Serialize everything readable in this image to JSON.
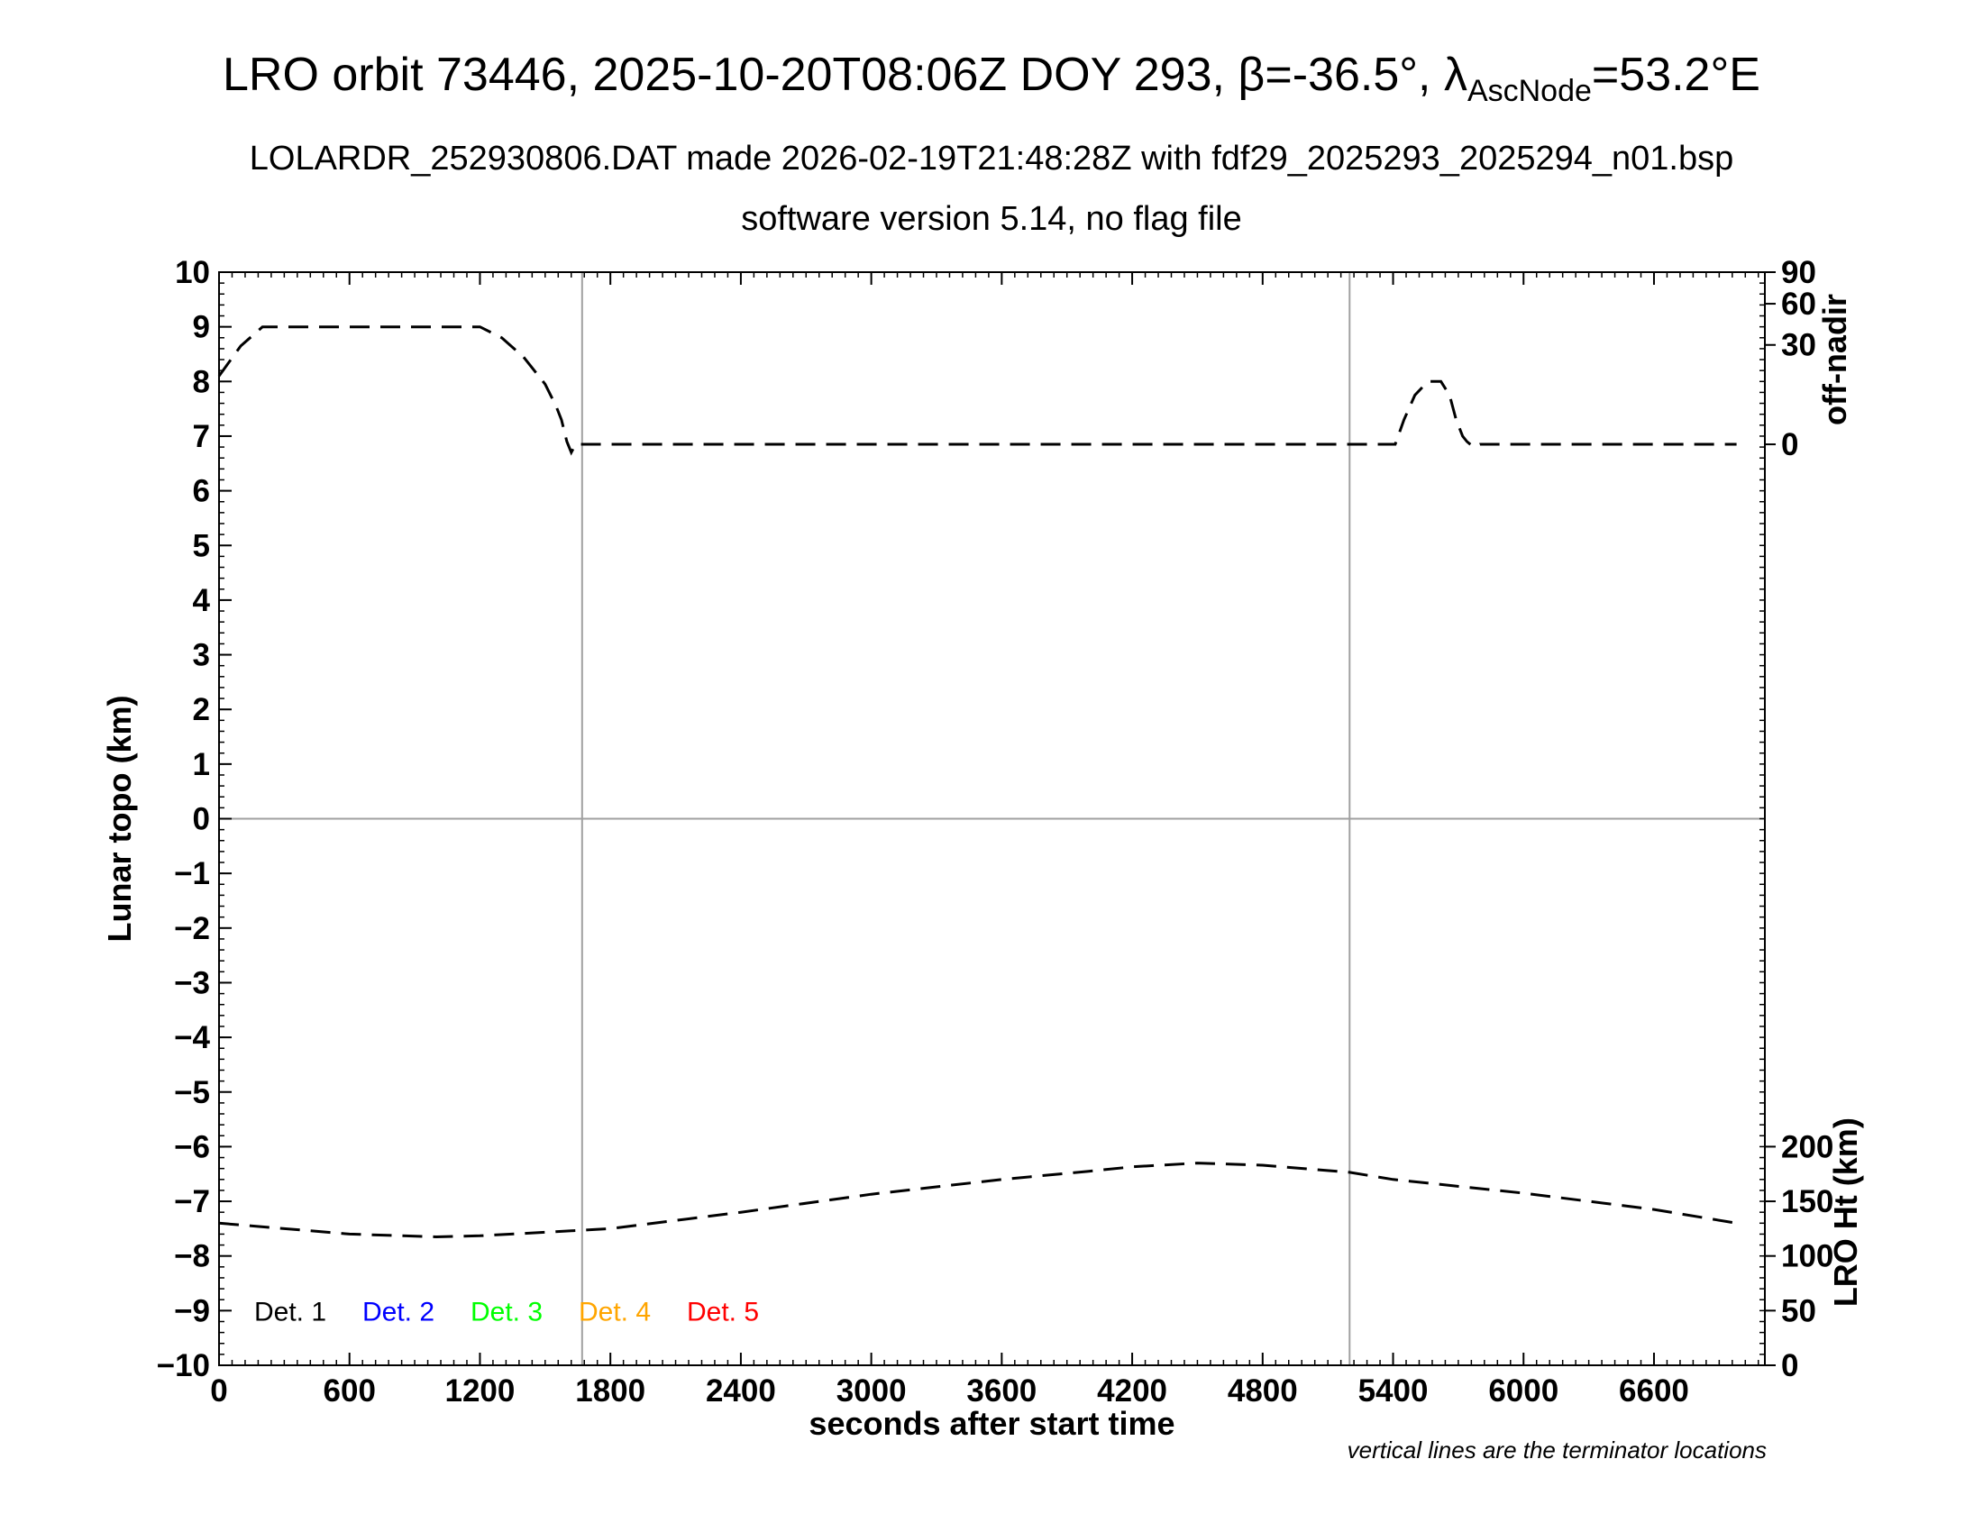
{
  "title_parts": {
    "main": "LRO orbit 73446, 2025-10-20T08:06Z DOY 293, ",
    "beta_symbol": "β",
    "beta_value": "=-36.5°, ",
    "lambda_symbol": "λ",
    "lambda_subscript": "AscNode",
    "lambda_value": "=53.2°E"
  },
  "subtitle": "LOLARDR_252930806.DAT made 2026-02-19T21:48:28Z with fdf29_2025293_2025294_n01.bsp",
  "subtitle2": "software version 5.14, no flag file",
  "footnote": "vertical lines are the terminator locations",
  "chart_data": {
    "type": "line",
    "xlabel": "seconds after start time",
    "ylabel": "Lunar topo (km)",
    "right_top_label": "off-nadir",
    "right_bottom_label": "LRO Ht (km)",
    "xlim": [
      0,
      7110
    ],
    "ylim": [
      -10,
      10
    ],
    "x_ticks": [
      0,
      600,
      1200,
      1800,
      2400,
      3000,
      3600,
      4200,
      4800,
      5400,
      6000,
      6600
    ],
    "y_ticks": [
      10,
      9,
      8,
      7,
      6,
      5,
      4,
      3,
      2,
      1,
      0,
      -1,
      -2,
      -3,
      -4,
      -5,
      -6,
      -7,
      -8,
      -9,
      -10
    ],
    "y_tick_labels": [
      "10",
      "9",
      "8",
      "7",
      "6",
      "5",
      "4",
      "3",
      "2",
      "1",
      "0",
      "−1",
      "−2",
      "−3",
      "−4",
      "−5",
      "−6",
      "−7",
      "−8",
      "−9",
      "−10"
    ],
    "off_nadir_ticks": [
      0,
      30,
      60,
      90
    ],
    "lro_ht_ticks": [
      0,
      50,
      100,
      150,
      200
    ],
    "lro_ht_scale": {
      "zero_at_topo": -10,
      "km_per_topo_unit": 50
    },
    "grid": false,
    "reference_lines": {
      "vertical_x": [
        1670,
        5200
      ],
      "horizontal_y": [
        0
      ]
    },
    "legend": {
      "placement": "bottom-left",
      "entries": [
        {
          "label": "Det. 1",
          "color": "#000000"
        },
        {
          "label": "Det. 2",
          "color": "#0000ff"
        },
        {
          "label": "Det. 3",
          "color": "#00ff00"
        },
        {
          "label": "Det. 4",
          "color": "#ffa500"
        },
        {
          "label": "Det. 5",
          "color": "#ff0000"
        }
      ]
    },
    "series": [
      {
        "style": "dashed",
        "color": "#000000",
        "axis": "off-nadir (plotted on topo scale)",
        "x": [
          0,
          100,
          200,
          1200,
          1300,
          1400,
          1500,
          1550,
          1575,
          1600,
          1620,
          1640,
          1660,
          1700,
          2400,
          3000,
          4000,
          5000,
          5380,
          5400,
          5410,
          5450,
          5500,
          5560,
          5620,
          5660,
          5690,
          5720,
          5740,
          5770,
          5800,
          6000,
          6600,
          6980
        ],
        "y": [
          8.1,
          8.65,
          9.0,
          9.0,
          8.8,
          8.45,
          7.95,
          7.55,
          7.3,
          6.9,
          6.7,
          6.85,
          6.85,
          6.85,
          6.85,
          6.85,
          6.85,
          6.85,
          6.85,
          6.85,
          6.85,
          7.3,
          7.75,
          8.0,
          8.0,
          7.75,
          7.3,
          7.0,
          6.9,
          6.8,
          6.85,
          6.85,
          6.85,
          6.85
        ]
      },
      {
        "style": "dashed",
        "color": "#000000",
        "axis": "LRO Ht (plotted on topo scale)",
        "x": [
          0,
          600,
          1000,
          1200,
          1800,
          2400,
          3000,
          3600,
          4000,
          4200,
          4500,
          4800,
          5200,
          5400,
          6000,
          6600,
          6980
        ],
        "y": [
          -7.4,
          -7.6,
          -7.65,
          -7.63,
          -7.5,
          -7.2,
          -6.87,
          -6.6,
          -6.45,
          -6.37,
          -6.3,
          -6.34,
          -6.47,
          -6.6,
          -6.85,
          -7.15,
          -7.4
        ]
      }
    ]
  }
}
